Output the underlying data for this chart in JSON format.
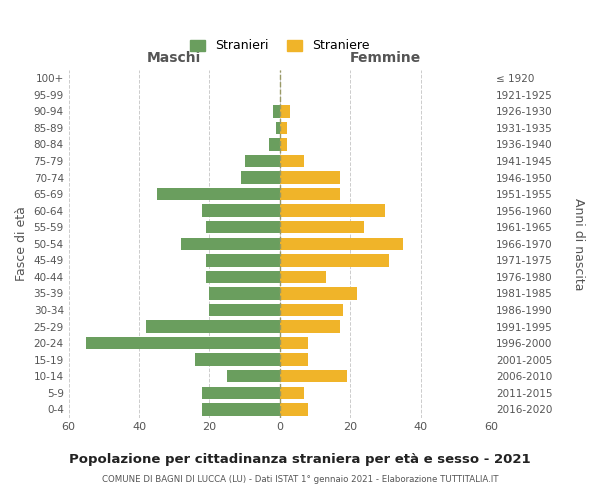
{
  "age_groups": [
    "0-4",
    "5-9",
    "10-14",
    "15-19",
    "20-24",
    "25-29",
    "30-34",
    "35-39",
    "40-44",
    "45-49",
    "50-54",
    "55-59",
    "60-64",
    "65-69",
    "70-74",
    "75-79",
    "80-84",
    "85-89",
    "90-94",
    "95-99",
    "100+"
  ],
  "birth_years": [
    "2016-2020",
    "2011-2015",
    "2006-2010",
    "2001-2005",
    "1996-2000",
    "1991-1995",
    "1986-1990",
    "1981-1985",
    "1976-1980",
    "1971-1975",
    "1966-1970",
    "1961-1965",
    "1956-1960",
    "1951-1955",
    "1946-1950",
    "1941-1945",
    "1936-1940",
    "1931-1935",
    "1926-1930",
    "1921-1925",
    "≤ 1920"
  ],
  "maschi": [
    22,
    22,
    15,
    24,
    55,
    38,
    20,
    20,
    21,
    21,
    28,
    21,
    22,
    35,
    11,
    10,
    3,
    1,
    2,
    0,
    0
  ],
  "femmine": [
    8,
    7,
    19,
    8,
    8,
    17,
    18,
    22,
    13,
    31,
    35,
    24,
    30,
    17,
    17,
    7,
    2,
    2,
    3,
    0,
    0
  ],
  "maschi_color": "#6a9e5e",
  "femmine_color": "#f0b429",
  "title": "Popolazione per cittadinanza straniera per età e sesso - 2021",
  "subtitle": "COMUNE DI BAGNI DI LUCCA (LU) - Dati ISTAT 1° gennaio 2021 - Elaborazione TUTTITALIA.IT",
  "ylabel_left": "Fasce di età",
  "ylabel_right": "Anni di nascita",
  "xlabel_left": "Maschi",
  "xlabel_right": "Femmine",
  "legend_maschi": "Stranieri",
  "legend_femmine": "Straniere",
  "xlim": 60,
  "background_color": "#ffffff",
  "grid_color": "#cccccc",
  "text_color": "#555555"
}
